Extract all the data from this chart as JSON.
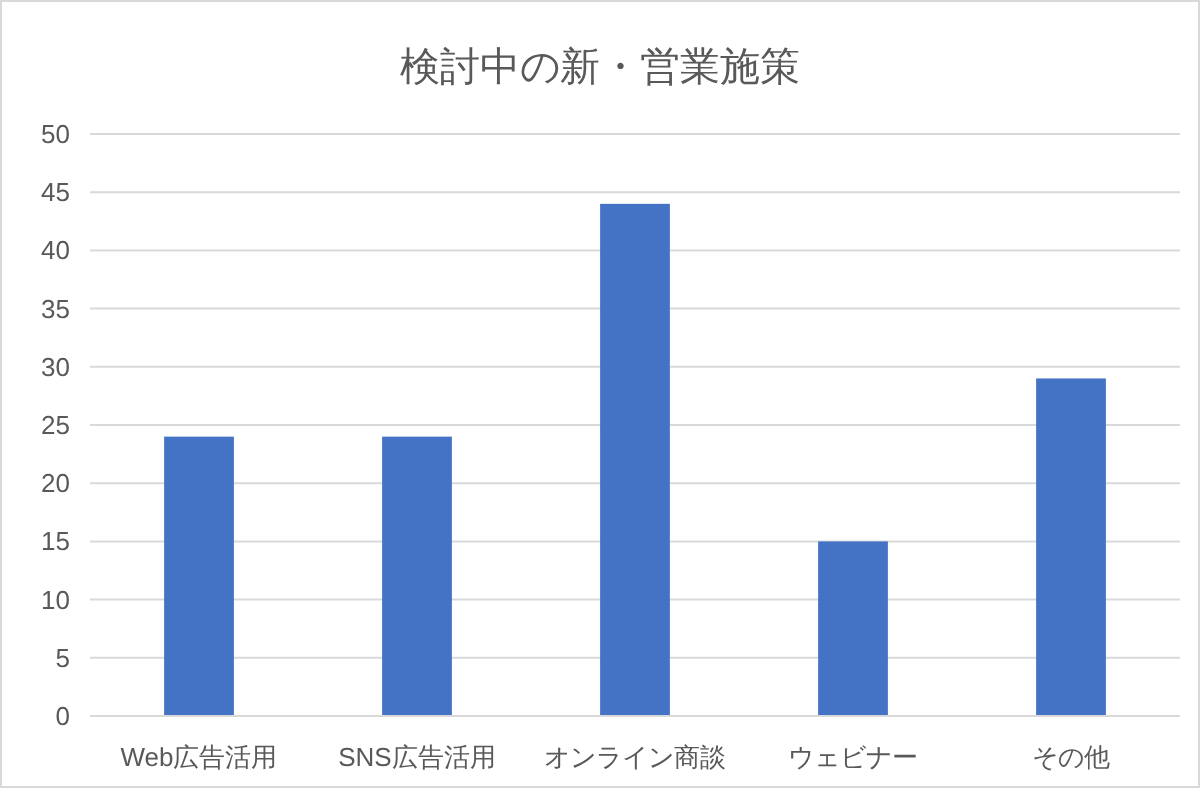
{
  "chart_data": {
    "type": "bar",
    "title": "検討中の新・営業施策",
    "categories": [
      "Web広告活用",
      "SNS広告活用",
      "オンライン商談",
      "ウェビナー",
      "その他"
    ],
    "values": [
      24,
      24,
      44,
      15,
      29
    ],
    "color": "#4472c4",
    "ylim": [
      0,
      50
    ],
    "yticks": [
      0,
      5,
      10,
      15,
      20,
      25,
      30,
      35,
      40,
      45,
      50
    ],
    "grid": "y"
  }
}
